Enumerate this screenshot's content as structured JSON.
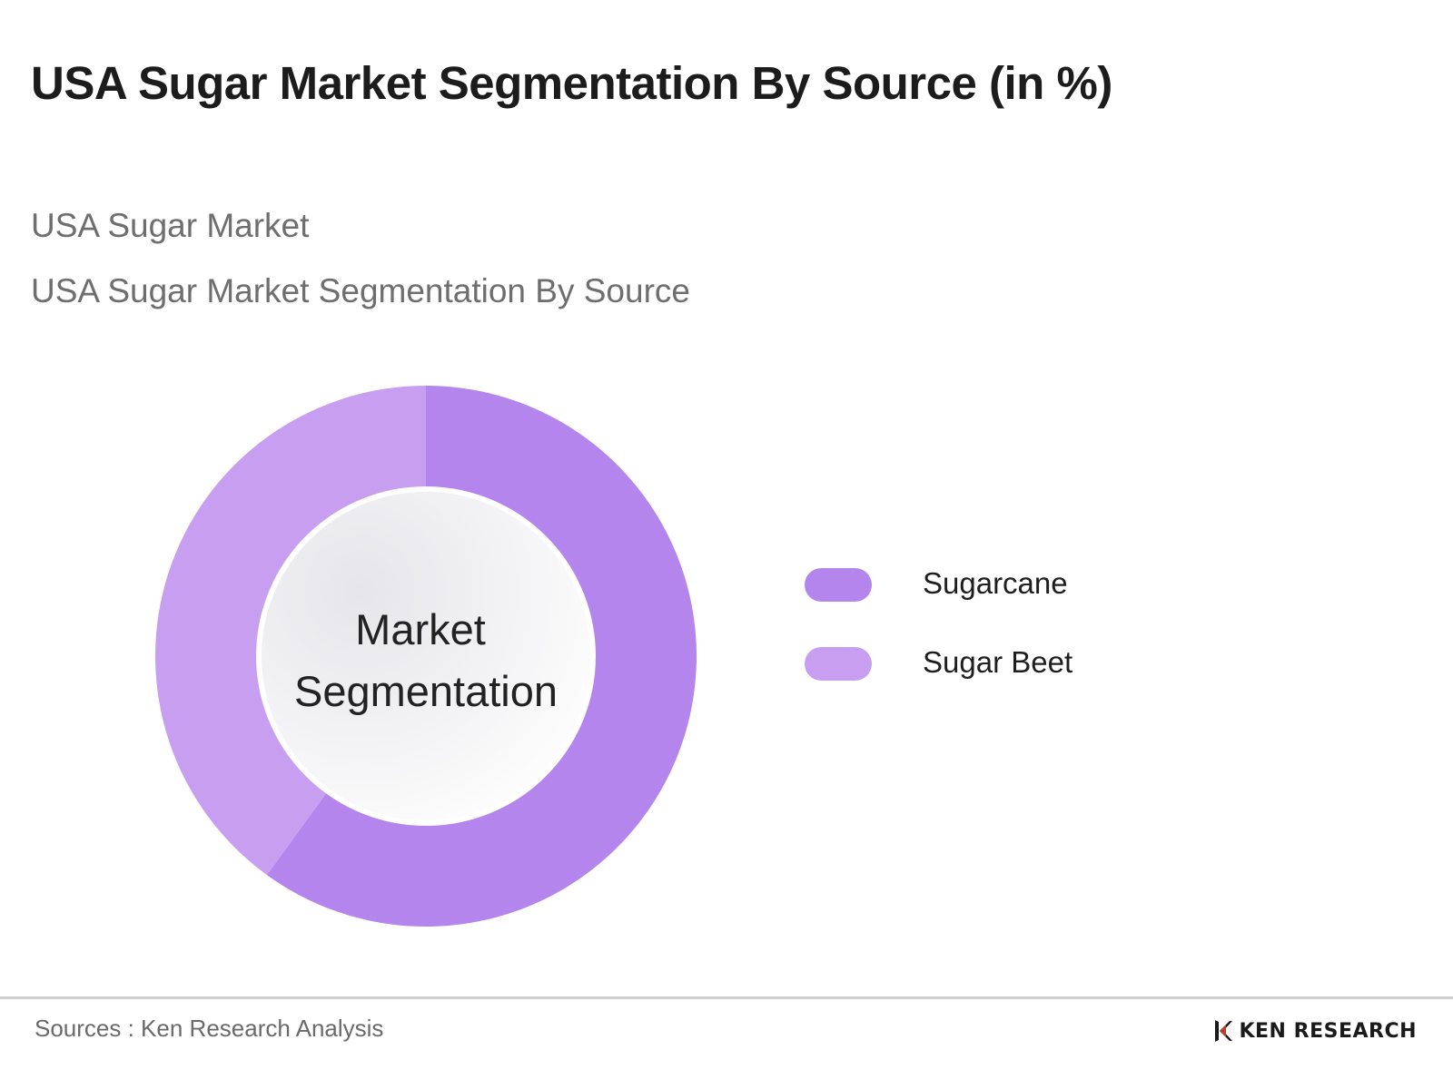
{
  "header": {
    "title": "USA Sugar Market Segmentation By Source (in %)",
    "subtitle_1": "USA Sugar Market",
    "subtitle_2": "USA Sugar Market Segmentation By Source"
  },
  "chart_data": {
    "type": "pie",
    "variant": "donut",
    "title": "USA Sugar Market Segmentation By Source (in %)",
    "center_label_lines": [
      "Market",
      "Segmentation"
    ],
    "categories": [
      "Sugarcane",
      "Sugar Beet"
    ],
    "values": [
      60,
      40
    ],
    "colors": [
      "#b485ec",
      "#c89ef0"
    ],
    "legend_placement": "right",
    "unit": "%"
  },
  "footer": {
    "sources": "Sources : Ken Research Analysis",
    "brand": "KEN RESEARCH"
  },
  "icons": {
    "brand_logo": "ken-research-logo-icon"
  }
}
